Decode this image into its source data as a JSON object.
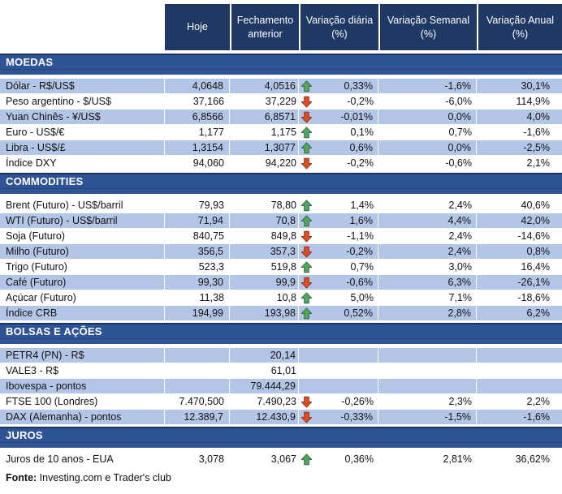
{
  "table": {
    "columns": [
      "Hoje",
      "Fechamento anterior",
      "Variação diária (%)",
      "Variação Semanal (%)",
      "Variação Anual (%)"
    ]
  },
  "sections": [
    {
      "title": "MOEDAS",
      "first_row_shaded": true,
      "rows": [
        {
          "label": "Dólar - R$/US$",
          "hoje": "4,0648",
          "fechamento": "4,0516",
          "arrow": "up",
          "diaria": "0,33%",
          "semanal": "-1,6%",
          "anual": "30,1%"
        },
        {
          "label": "Peso argentino - $/US$",
          "hoje": "37,166",
          "fechamento": "37,229",
          "arrow": "down",
          "diaria": "-0,2%",
          "semanal": "-6,0%",
          "anual": "114,9%"
        },
        {
          "label": "Yuan Chinês - ¥/US$",
          "hoje": "6,8566",
          "fechamento": "6,8571",
          "arrow": "down",
          "diaria": "-0,01%",
          "semanal": "0,0%",
          "anual": "4,0%"
        },
        {
          "label": "Euro - US$/€",
          "hoje": "1,177",
          "fechamento": "1,175",
          "arrow": "up",
          "diaria": "0,1%",
          "semanal": "0,7%",
          "anual": "-1,6%"
        },
        {
          "label": "Libra - US$/£",
          "hoje": "1,3154",
          "fechamento": "1,3077",
          "arrow": "up",
          "diaria": "0,6%",
          "semanal": "0,0%",
          "anual": "-2,5%"
        },
        {
          "label": "Índice DXY",
          "hoje": "94,060",
          "fechamento": "94,220",
          "arrow": "down",
          "diaria": "-0,2%",
          "semanal": "-0,6%",
          "anual": "2,1%"
        }
      ]
    },
    {
      "title": "COMMODITIES",
      "first_row_shaded": false,
      "rows": [
        {
          "label": "Brent (Futuro) - US$/barril",
          "hoje": "79,93",
          "fechamento": "78,80",
          "arrow": "up",
          "diaria": "1,4%",
          "semanal": "2,4%",
          "anual": "40,6%"
        },
        {
          "label": "WTI (Futuro) - US$/barril",
          "hoje": "71,94",
          "fechamento": "70,8",
          "arrow": "up",
          "diaria": "1,6%",
          "semanal": "4,4%",
          "anual": "42,0%"
        },
        {
          "label": "Soja (Futuro)",
          "hoje": "840,75",
          "fechamento": "849,8",
          "arrow": "down",
          "diaria": "-1,1%",
          "semanal": "2,4%",
          "anual": "-14,6%"
        },
        {
          "label": "Milho (Futuro)",
          "hoje": "356,5",
          "fechamento": "357,3",
          "arrow": "down",
          "diaria": "-0,2%",
          "semanal": "2,4%",
          "anual": "0,8%"
        },
        {
          "label": "Trigo (Futuro)",
          "hoje": "523,3",
          "fechamento": "519,8",
          "arrow": "up",
          "diaria": "0,7%",
          "semanal": "3,0%",
          "anual": "16,4%"
        },
        {
          "label": "Café (Futuro)",
          "hoje": "99,30",
          "fechamento": "99,9",
          "arrow": "down",
          "diaria": "-0,6%",
          "semanal": "6,3%",
          "anual": "-26,1%"
        },
        {
          "label": "Açúcar (Futuro)",
          "hoje": "11,38",
          "fechamento": "10,8",
          "arrow": "up",
          "diaria": "5,0%",
          "semanal": "7,1%",
          "anual": "-18,6%"
        },
        {
          "label": "Índice CRB",
          "hoje": "194,99",
          "fechamento": "193,98",
          "arrow": "up",
          "diaria": "0,52%",
          "semanal": "2,8%",
          "anual": "6,2%"
        }
      ]
    },
    {
      "title": "BOLSAS E AÇÕES",
      "first_row_shaded": true,
      "rows": [
        {
          "label": "PETR4 (PN) - R$",
          "hoje": "",
          "fechamento": "20,14",
          "arrow": null,
          "diaria": "",
          "semanal": "",
          "anual": ""
        },
        {
          "label": "VALE3 - R$",
          "hoje": "",
          "fechamento": "61,01",
          "arrow": null,
          "diaria": "",
          "semanal": "",
          "anual": ""
        },
        {
          "label": "Ibovespa - pontos",
          "hoje": "",
          "fechamento": "79.444,29",
          "arrow": null,
          "diaria": "",
          "semanal": "",
          "anual": ""
        },
        {
          "label": "FTSE 100 (Londres)",
          "hoje": "7.470,500",
          "fechamento": "7.490,23",
          "arrow": "down",
          "diaria": "-0,26%",
          "semanal": "2,3%",
          "anual": "2,2%"
        },
        {
          "label": "DAX (Alemanha) - pontos",
          "hoje": "12.389,7",
          "fechamento": "12.430,9",
          "arrow": "down",
          "diaria": "-0,33%",
          "semanal": "-1,5%",
          "anual": "-1,6%"
        }
      ]
    },
    {
      "title": "JUROS",
      "first_row_shaded": false,
      "rows": [
        {
          "label": "Juros de 10 anos - EUA",
          "hoje": "3,078",
          "fechamento": "3,067",
          "arrow": "up",
          "diaria": "0,36%",
          "semanal": "2,81%",
          "anual": "36,62%"
        }
      ]
    }
  ],
  "footer": {
    "label": "Fonte:",
    "text": " Investing.com e Trader's club"
  },
  "colors": {
    "header_bg": "#1F3864",
    "section_bg": "#2F5496",
    "row_shade": "#B4C6E7",
    "up_arrow_green": "#56A462",
    "down_arrow_red": "#D4502A"
  },
  "icons": {
    "up": "up-arrow-icon",
    "down": "down-arrow-icon"
  }
}
